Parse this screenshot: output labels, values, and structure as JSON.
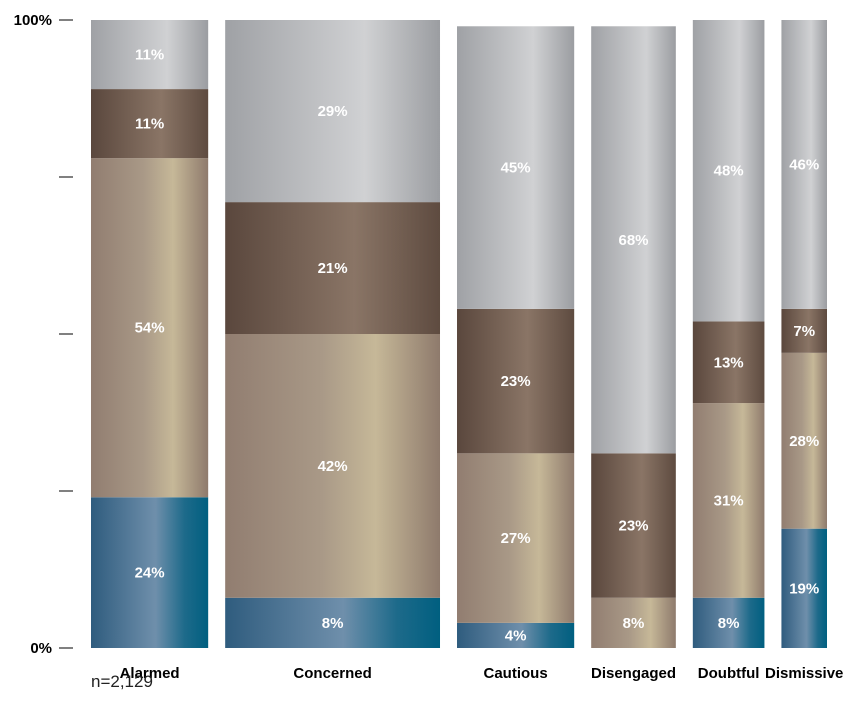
{
  "chart_data": {
    "type": "bar",
    "stacked": true,
    "orientation": "vertical",
    "categories": [
      "Alarmed",
      "Concerned",
      "Cautious",
      "Disengaged",
      "Doubtful",
      "Dismissive"
    ],
    "category_widths_relative": [
      18,
      33,
      18,
      13,
      11,
      7
    ],
    "series": [
      {
        "values": [
          24,
          8,
          4,
          0,
          8,
          19
        ],
        "color": "#3b6a8a"
      },
      {
        "values": [
          54,
          42,
          27,
          8,
          31,
          28
        ],
        "color": "#a18e7e"
      },
      {
        "values": [
          11,
          21,
          23,
          23,
          13,
          7
        ],
        "color": "#6e5a4e"
      },
      {
        "values": [
          11,
          29,
          45,
          68,
          48,
          46
        ],
        "color": "#aeb0b3"
      }
    ],
    "value_labels": [
      [
        "24%",
        "54%",
        "11%",
        "11%"
      ],
      [
        "8%",
        "42%",
        "21%",
        "29%"
      ],
      [
        "4%",
        "27%",
        "23%",
        "45%"
      ],
      [
        "",
        "8%",
        "23%",
        "68%"
      ],
      [
        "8%",
        "31%",
        "13%",
        "48%"
      ],
      [
        "19%",
        "28%",
        "7%",
        "46%"
      ]
    ],
    "ylim": [
      0,
      100
    ],
    "yticks": [
      0,
      25,
      50,
      75,
      100
    ],
    "ytick_labels": [
      "0%",
      "",
      "",
      "",
      "100%"
    ],
    "legend": "none",
    "grid": false
  },
  "footnote": "n=2,129"
}
